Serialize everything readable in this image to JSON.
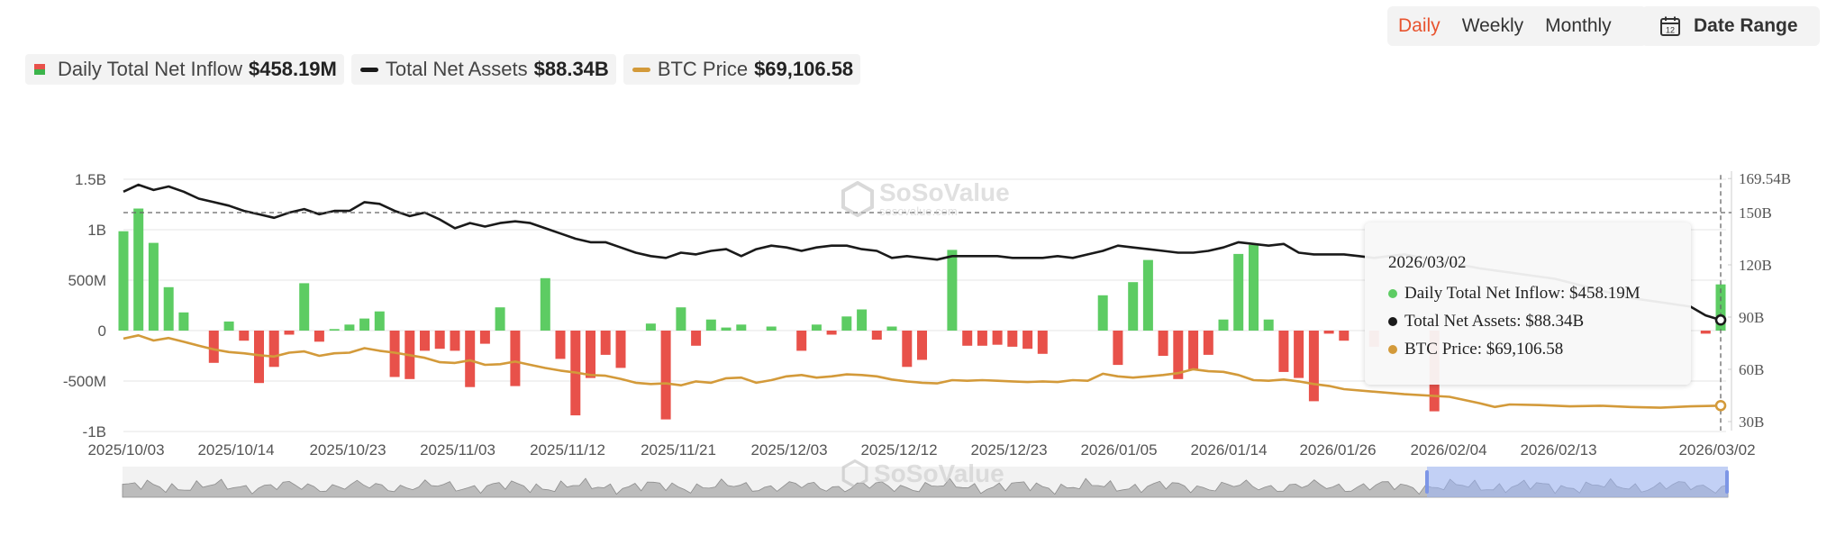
{
  "controls": {
    "periods": [
      "Daily",
      "Weekly",
      "Monthly"
    ],
    "active_period": "Daily",
    "date_range_label": "Date Range",
    "icons": {
      "calendar": "calendar-icon"
    }
  },
  "legend": [
    {
      "name": "Daily Total Net Inflow",
      "value": "$458.19M",
      "kind": "bar"
    },
    {
      "name": "Total Net Assets",
      "value": "$88.34B",
      "kind": "line",
      "color": "#1a1a1a"
    },
    {
      "name": "BTC Price",
      "value": "$69,106.58",
      "kind": "line",
      "color": "#d39a3a"
    }
  ],
  "colors": {
    "positive": "#5dcc63",
    "negative": "#e8514a",
    "assets": "#1a1a1a",
    "btc": "#d39a3a",
    "navigator": "#9bb5f7"
  },
  "watermark": {
    "brand": "SoSoValue",
    "site": "sosovalue.com"
  },
  "tooltip": {
    "date": "2026/03/02",
    "rows": [
      {
        "label": "Daily Total Net Inflow: $458.19M",
        "color": "#5dcc63"
      },
      {
        "label": "Total Net Assets: $88.34B",
        "color": "#1a1a1a"
      },
      {
        "label": "BTC Price: $69,106.58",
        "color": "#d39a3a"
      }
    ]
  },
  "chart_data": {
    "type": "bar",
    "title": "",
    "x_ticks": [
      "2025/10/03",
      "2025/10/14",
      "2025/10/23",
      "2025/11/03",
      "2025/11/12",
      "2025/11/21",
      "2025/12/03",
      "2025/12/12",
      "2025/12/23",
      "2026/01/05",
      "2026/01/14",
      "2026/01/26",
      "2026/02/04",
      "2026/02/13",
      "2026/03/02"
    ],
    "left_axis": {
      "ticks": [
        "1.5B",
        "1B",
        "500M",
        "0",
        "-500M",
        "-1B"
      ],
      "ylim_millions": [
        -1000,
        1500
      ]
    },
    "right_axis": {
      "ticks": [
        "169.54B",
        "150B",
        "120B",
        "90B",
        "60B",
        "30B"
      ],
      "ylim_billions": [
        30,
        169.54
      ]
    },
    "crosshair_value": "150B",
    "series": [
      {
        "name": "Daily Total Net Inflow",
        "kind": "bar",
        "unit": "USD millions",
        "values": [
          985,
          1210,
          870,
          430,
          180,
          0,
          -320,
          90,
          -100,
          -520,
          -360,
          -40,
          470,
          -110,
          15,
          60,
          120,
          190,
          -460,
          -480,
          -200,
          -180,
          -200,
          -560,
          -130,
          230,
          -550,
          0,
          520,
          -280,
          -840,
          -470,
          -240,
          -370,
          0,
          70,
          -880,
          230,
          -150,
          110,
          30,
          60,
          0,
          40,
          0,
          -200,
          60,
          -40,
          140,
          210,
          -90,
          40,
          -360,
          -290,
          0,
          800,
          -150,
          -150,
          -140,
          -160,
          -180,
          -230,
          0,
          0,
          0,
          350,
          -340,
          480,
          700,
          -250,
          -480,
          -390,
          -240,
          110,
          760,
          850,
          110,
          -410,
          -470,
          -700,
          -30,
          -100,
          0,
          -160,
          0,
          0,
          0,
          -800,
          0,
          0,
          0,
          0,
          0,
          0,
          0,
          0,
          0,
          0,
          0,
          0,
          0,
          0,
          0,
          0,
          0,
          -30,
          458.19
        ]
      },
      {
        "name": "Total Net Assets",
        "kind": "line",
        "unit": "USD billions",
        "values": [
          [
            0,
            162
          ],
          [
            1,
            166
          ],
          [
            2,
            163
          ],
          [
            3,
            165
          ],
          [
            4,
            162
          ],
          [
            5,
            158
          ],
          [
            6,
            156
          ],
          [
            7,
            154
          ],
          [
            8,
            151
          ],
          [
            9,
            149
          ],
          [
            10,
            147
          ],
          [
            11,
            150
          ],
          [
            12,
            152
          ],
          [
            13,
            149
          ],
          [
            14,
            151
          ],
          [
            15,
            151
          ],
          [
            16,
            156
          ],
          [
            17,
            155
          ],
          [
            18,
            151
          ],
          [
            19,
            148
          ],
          [
            20,
            150
          ],
          [
            21,
            146
          ],
          [
            22,
            141
          ],
          [
            23,
            144
          ],
          [
            24,
            142
          ],
          [
            25,
            144
          ],
          [
            26,
            145
          ],
          [
            27,
            144
          ],
          [
            28,
            141
          ],
          [
            29,
            138
          ],
          [
            30,
            135
          ],
          [
            31,
            133
          ],
          [
            32,
            133
          ],
          [
            33,
            130
          ],
          [
            34,
            127
          ],
          [
            35,
            125
          ],
          [
            36,
            124
          ],
          [
            37,
            127
          ],
          [
            38,
            126
          ],
          [
            39,
            128
          ],
          [
            40,
            129
          ],
          [
            41,
            125
          ],
          [
            42,
            129
          ],
          [
            43,
            131
          ],
          [
            44,
            130
          ],
          [
            45,
            128
          ],
          [
            46,
            130
          ],
          [
            47,
            131
          ],
          [
            48,
            131
          ],
          [
            49,
            129
          ],
          [
            50,
            128
          ],
          [
            51,
            124
          ],
          [
            52,
            125
          ],
          [
            53,
            124
          ],
          [
            54,
            123
          ],
          [
            55,
            125
          ],
          [
            56,
            125
          ],
          [
            57,
            125
          ],
          [
            58,
            125
          ],
          [
            59,
            124
          ],
          [
            60,
            124
          ],
          [
            61,
            124
          ],
          [
            62,
            125
          ],
          [
            63,
            124
          ],
          [
            64,
            126
          ],
          [
            65,
            128
          ],
          [
            66,
            131
          ],
          [
            67,
            130
          ],
          [
            68,
            129
          ],
          [
            69,
            128
          ],
          [
            70,
            127
          ],
          [
            71,
            127
          ],
          [
            72,
            128
          ],
          [
            73,
            130
          ],
          [
            74,
            133
          ],
          [
            75,
            132
          ],
          [
            76,
            131
          ],
          [
            77,
            132
          ],
          [
            78,
            127
          ],
          [
            79,
            126
          ],
          [
            80,
            126
          ],
          [
            81,
            126
          ],
          [
            82,
            125
          ],
          [
            83,
            124
          ],
          [
            84,
            125
          ],
          [
            85,
            126
          ],
          [
            90,
            118
          ],
          [
            95,
            112
          ],
          [
            100,
            101
          ],
          [
            104,
            96
          ],
          [
            105,
            91
          ],
          [
            106,
            88.34
          ]
        ]
      },
      {
        "name": "BTC Price",
        "kind": "line",
        "unit": "USD",
        "values": [
          [
            0,
            121500
          ],
          [
            1,
            124000
          ],
          [
            2,
            120000
          ],
          [
            3,
            122000
          ],
          [
            4,
            119000
          ],
          [
            5,
            116000
          ],
          [
            6,
            113000
          ],
          [
            7,
            111000
          ],
          [
            8,
            110000
          ],
          [
            9,
            108500
          ],
          [
            10,
            107500
          ],
          [
            11,
            110500
          ],
          [
            12,
            111500
          ],
          [
            13,
            108000
          ],
          [
            14,
            110000
          ],
          [
            15,
            110500
          ],
          [
            16,
            114000
          ],
          [
            17,
            112000
          ],
          [
            18,
            110500
          ],
          [
            19,
            108500
          ],
          [
            20,
            106500
          ],
          [
            21,
            103000
          ],
          [
            22,
            102500
          ],
          [
            23,
            104500
          ],
          [
            24,
            101000
          ],
          [
            25,
            101500
          ],
          [
            26,
            103500
          ],
          [
            27,
            101000
          ],
          [
            28,
            98500
          ],
          [
            29,
            96500
          ],
          [
            30,
            95000
          ],
          [
            31,
            93000
          ],
          [
            32,
            92500
          ],
          [
            33,
            90000
          ],
          [
            34,
            87000
          ],
          [
            35,
            86000
          ],
          [
            36,
            86500
          ],
          [
            37,
            85000
          ],
          [
            38,
            88000
          ],
          [
            39,
            87000
          ],
          [
            40,
            90500
          ],
          [
            41,
            91000
          ],
          [
            42,
            87000
          ],
          [
            43,
            89000
          ],
          [
            44,
            92000
          ],
          [
            45,
            93000
          ],
          [
            46,
            91000
          ],
          [
            47,
            92000
          ],
          [
            48,
            93500
          ],
          [
            49,
            93000
          ],
          [
            50,
            92000
          ],
          [
            51,
            89500
          ],
          [
            52,
            88000
          ],
          [
            53,
            87000
          ],
          [
            54,
            86500
          ],
          [
            55,
            89000
          ],
          [
            56,
            88500
          ],
          [
            57,
            89000
          ],
          [
            58,
            88500
          ],
          [
            59,
            88000
          ],
          [
            60,
            87500
          ],
          [
            61,
            88000
          ],
          [
            62,
            87500
          ],
          [
            63,
            89000
          ],
          [
            64,
            88500
          ],
          [
            65,
            94000
          ],
          [
            66,
            92000
          ],
          [
            67,
            91000
          ],
          [
            68,
            92000
          ],
          [
            69,
            93000
          ],
          [
            70,
            94500
          ],
          [
            71,
            97500
          ],
          [
            72,
            96000
          ],
          [
            73,
            95500
          ],
          [
            74,
            93000
          ],
          [
            75,
            89000
          ],
          [
            76,
            88500
          ],
          [
            77,
            89500
          ],
          [
            78,
            88000
          ],
          [
            79,
            86000
          ],
          [
            80,
            84500
          ],
          [
            81,
            82000
          ],
          [
            85,
            78000
          ],
          [
            88,
            76000
          ],
          [
            90,
            71000
          ],
          [
            91,
            68000
          ],
          [
            92,
            70000
          ],
          [
            94,
            69500
          ],
          [
            96,
            68500
          ],
          [
            98,
            69000
          ],
          [
            100,
            68000
          ],
          [
            102,
            67500
          ],
          [
            104,
            68500
          ],
          [
            106,
            69106.58
          ]
        ]
      }
    ]
  }
}
